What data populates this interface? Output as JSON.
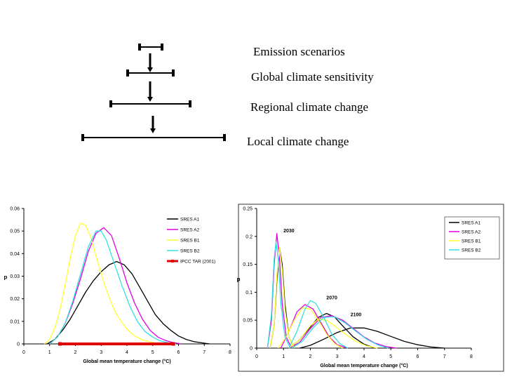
{
  "diagram": {
    "levels": [
      "Emission scenarios",
      "Global climate sensitivity",
      "Regional climate change",
      "Local climate change"
    ]
  },
  "chart_data": [
    {
      "type": "line",
      "title": "",
      "xlabel": "Global mean temperature change  (°C)",
      "ylabel": "p",
      "xlim": [
        0,
        8
      ],
      "ylim": [
        0,
        0.06
      ],
      "xticks": [
        "0",
        "1",
        "2",
        "3",
        "4",
        "5",
        "6",
        "7",
        "8"
      ],
      "yticks": [
        "0",
        "0.01",
        "0.02",
        "0.03",
        "0.04",
        "0.05",
        "0.06"
      ],
      "legend_position": "top-right",
      "series": [
        {
          "name": "SRES A1",
          "color": "#000000",
          "x": [
            0.9,
            1.2,
            1.5,
            1.8,
            2.1,
            2.4,
            2.7,
            3.0,
            3.3,
            3.6,
            3.9,
            4.2,
            4.5,
            4.8,
            5.1,
            5.4,
            5.7,
            6.0,
            6.3,
            6.6,
            6.9,
            7.2
          ],
          "y": [
            0,
            0.002,
            0.006,
            0.011,
            0.017,
            0.023,
            0.028,
            0.032,
            0.035,
            0.0365,
            0.035,
            0.031,
            0.025,
            0.019,
            0.013,
            0.009,
            0.006,
            0.0035,
            0.002,
            0.001,
            0.0005,
            0
          ]
        },
        {
          "name": "SRES A2",
          "color": "#e000e0",
          "x": [
            1.0,
            1.3,
            1.6,
            1.9,
            2.2,
            2.5,
            2.8,
            3.1,
            3.4,
            3.7,
            4.0,
            4.3,
            4.6,
            4.9,
            5.2,
            5.5,
            5.8,
            6.1
          ],
          "y": [
            0,
            0.003,
            0.009,
            0.018,
            0.029,
            0.041,
            0.049,
            0.0515,
            0.048,
            0.038,
            0.027,
            0.018,
            0.011,
            0.006,
            0.003,
            0.0015,
            0.0006,
            0
          ]
        },
        {
          "name": "SRES B1",
          "color": "#ffff33",
          "x": [
            0.8,
            1.0,
            1.2,
            1.4,
            1.6,
            1.8,
            2.0,
            2.2,
            2.4,
            2.6,
            2.8,
            3.0,
            3.2,
            3.4,
            3.6,
            3.8,
            4.0,
            4.3,
            4.6,
            5.0,
            5.4
          ],
          "y": [
            0,
            0.002,
            0.007,
            0.015,
            0.026,
            0.038,
            0.048,
            0.0535,
            0.0525,
            0.047,
            0.039,
            0.031,
            0.024,
            0.018,
            0.013,
            0.0095,
            0.0065,
            0.0035,
            0.0018,
            0.0006,
            0
          ]
        },
        {
          "name": "SRES B2",
          "color": "#33e0e0",
          "x": [
            1.0,
            1.3,
            1.6,
            1.9,
            2.2,
            2.5,
            2.8,
            3.0,
            3.2,
            3.5,
            3.8,
            4.1,
            4.4,
            4.7,
            5.0,
            5.3,
            5.6,
            5.9
          ],
          "y": [
            0,
            0.003,
            0.009,
            0.019,
            0.031,
            0.043,
            0.05,
            0.05,
            0.046,
            0.036,
            0.026,
            0.017,
            0.01,
            0.0055,
            0.003,
            0.0013,
            0.0005,
            0
          ]
        },
        {
          "name": "IPCC TAR (2001)",
          "color": "#e00000",
          "kind": "range",
          "x": [
            1.4,
            5.8
          ],
          "y": [
            0,
            0
          ]
        }
      ]
    },
    {
      "type": "line",
      "title": "",
      "xlabel": "Global mean temperature change (°C)",
      "ylabel": "p",
      "xlim": [
        0,
        8
      ],
      "ylim": [
        0,
        0.25
      ],
      "xticks": [
        "0",
        "1",
        "2",
        "3",
        "4",
        "5",
        "6",
        "7",
        "8"
      ],
      "yticks": [
        "0",
        "0.05",
        "0.1",
        "0.15",
        "0.2",
        "0.25"
      ],
      "legend_position": "top-right",
      "annotations": [
        {
          "text": "2030",
          "x": 1.2,
          "y": 0.207
        },
        {
          "text": "2070",
          "x": 2.8,
          "y": 0.087
        },
        {
          "text": "2100",
          "x": 3.7,
          "y": 0.057
        }
      ],
      "series": [
        {
          "name": "SRES A1",
          "color": "#000000",
          "groups": [
            {
              "x": [
                0.5,
                0.65,
                0.75,
                0.85,
                0.95,
                1.05,
                1.2,
                1.4
              ],
              "y": [
                0,
                0.04,
                0.12,
                0.18,
                0.15,
                0.08,
                0.02,
                0
              ]
            },
            {
              "x": [
                1.2,
                1.6,
                2.0,
                2.3,
                2.6,
                2.9,
                3.2,
                3.6,
                4.0,
                4.4
              ],
              "y": [
                0,
                0.015,
                0.038,
                0.055,
                0.062,
                0.056,
                0.04,
                0.02,
                0.007,
                0
              ]
            },
            {
              "x": [
                1.6,
                2.0,
                2.5,
                3.0,
                3.5,
                4.0,
                4.5,
                5.0,
                5.5,
                6.0,
                6.5,
                7.0
              ],
              "y": [
                0,
                0.005,
                0.016,
                0.028,
                0.036,
                0.036,
                0.03,
                0.021,
                0.012,
                0.006,
                0.002,
                0
              ]
            }
          ]
        },
        {
          "name": "SRES A2",
          "color": "#e000e0",
          "groups": [
            {
              "x": [
                0.4,
                0.55,
                0.65,
                0.75,
                0.85,
                0.95,
                1.1,
                1.3
              ],
              "y": [
                0,
                0.05,
                0.15,
                0.205,
                0.16,
                0.08,
                0.02,
                0
              ]
            },
            {
              "x": [
                0.9,
                1.2,
                1.5,
                1.8,
                2.1,
                2.4,
                2.7,
                3.0,
                3.4
              ],
              "y": [
                0,
                0.03,
                0.065,
                0.078,
                0.07,
                0.045,
                0.02,
                0.006,
                0
              ]
            },
            {
              "x": [
                1.2,
                1.6,
                2.0,
                2.4,
                2.8,
                3.2,
                3.6,
                4.0,
                4.4,
                4.8,
                5.2
              ],
              "y": [
                0,
                0.01,
                0.035,
                0.055,
                0.058,
                0.05,
                0.035,
                0.02,
                0.009,
                0.003,
                0
              ]
            }
          ]
        },
        {
          "name": "SRES B1",
          "color": "#ffff33",
          "groups": [
            {
              "x": [
                0.5,
                0.65,
                0.75,
                0.85,
                0.95,
                1.05,
                1.2,
                1.4
              ],
              "y": [
                0,
                0.04,
                0.13,
                0.18,
                0.14,
                0.07,
                0.02,
                0
              ]
            },
            {
              "x": [
                0.8,
                1.1,
                1.4,
                1.7,
                2.0,
                2.3,
                2.6,
                2.9,
                3.2
              ],
              "y": [
                0,
                0.02,
                0.05,
                0.072,
                0.07,
                0.05,
                0.025,
                0.008,
                0
              ]
            },
            {
              "x": [
                1.2,
                1.6,
                2.0,
                2.3,
                2.6,
                2.9,
                3.3,
                3.7,
                4.1,
                4.5
              ],
              "y": [
                0,
                0.015,
                0.04,
                0.052,
                0.05,
                0.04,
                0.025,
                0.012,
                0.004,
                0
              ]
            }
          ]
        },
        {
          "name": "SRES B2",
          "color": "#33e0e0",
          "groups": [
            {
              "x": [
                0.4,
                0.55,
                0.65,
                0.72,
                0.8,
                0.9,
                1.05,
                1.25
              ],
              "y": [
                0,
                0.06,
                0.16,
                0.19,
                0.16,
                0.08,
                0.02,
                0
              ]
            },
            {
              "x": [
                1.2,
                1.5,
                1.8,
                2.0,
                2.2,
                2.5,
                2.8,
                3.1,
                3.4
              ],
              "y": [
                0,
                0.03,
                0.07,
                0.085,
                0.08,
                0.055,
                0.025,
                0.008,
                0
              ]
            },
            {
              "x": [
                1.3,
                1.7,
                2.1,
                2.5,
                2.9,
                3.3,
                3.7,
                4.1,
                4.5,
                4.9
              ],
              "y": [
                0,
                0.012,
                0.036,
                0.055,
                0.056,
                0.045,
                0.03,
                0.016,
                0.006,
                0
              ]
            }
          ]
        }
      ]
    }
  ]
}
